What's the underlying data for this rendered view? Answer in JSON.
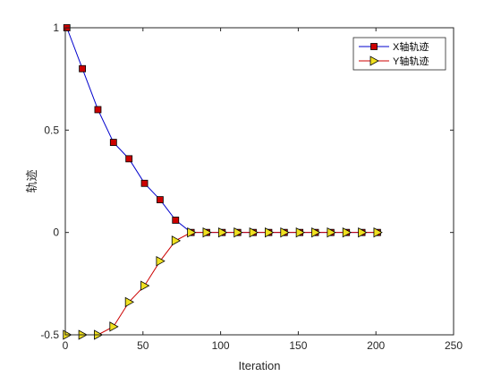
{
  "chart_data": {
    "type": "line",
    "title": "",
    "xlabel": "Iteration",
    "ylabel": "轨迹",
    "xlim": [
      0,
      250
    ],
    "ylim": [
      -0.5,
      1
    ],
    "xticks": [
      0,
      50,
      100,
      150,
      200,
      250
    ],
    "yticks": [
      -0.5,
      0,
      0.5,
      1
    ],
    "ytick_labels": [
      "-0.5",
      "0",
      "0.5",
      "1"
    ],
    "grid": false,
    "box": true,
    "legend_position": "top-right",
    "x": [
      1,
      11,
      21,
      31,
      41,
      51,
      61,
      71,
      81,
      91,
      101,
      111,
      121,
      131,
      141,
      151,
      161,
      171,
      181,
      191,
      201
    ],
    "series": [
      {
        "name": "X轴轨迹",
        "line_color": "#0000cc",
        "marker": "square",
        "marker_fill": "#cc0000",
        "values": [
          1.0,
          0.8,
          0.6,
          0.44,
          0.36,
          0.24,
          0.16,
          0.06,
          0,
          0,
          0,
          0,
          0,
          0,
          0,
          0,
          0,
          0,
          0,
          0,
          0
        ]
      },
      {
        "name": "Y轴轨迹",
        "line_color": "#cc0000",
        "marker": "triangle-right",
        "marker_fill": "#f0e020",
        "values": [
          -0.5,
          -0.5,
          -0.5,
          -0.46,
          -0.34,
          -0.26,
          -0.14,
          -0.04,
          0,
          0,
          0,
          0,
          0,
          0,
          0,
          0,
          0,
          0,
          0,
          0,
          0
        ]
      }
    ]
  }
}
